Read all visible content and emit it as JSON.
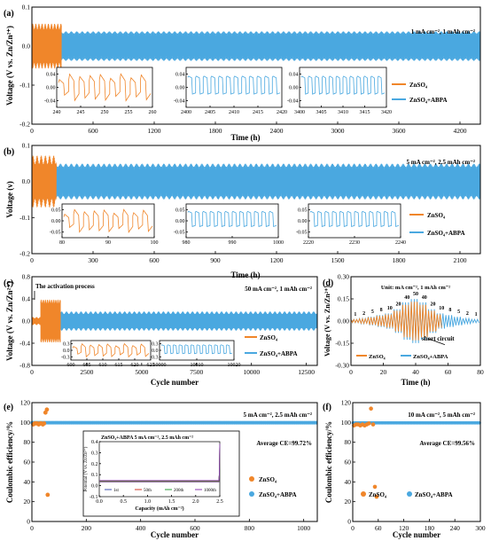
{
  "colors": {
    "znso4": "#f0862a",
    "abpa": "#4aa8e0"
  },
  "chart_data": [
    {
      "panel": "(a)",
      "type": "line",
      "condition": "1 mA cm⁻²,  1 mAh cm⁻²",
      "xlabel": "Time (h)",
      "ylabel": "Voltage (V vs. Zn/Zn²⁺)",
      "xlim": [
        0,
        4400
      ],
      "ylim": [
        -0.2,
        0.1
      ],
      "xticks": [
        "0",
        "600",
        "1200",
        "1800",
        "2400",
        "3000",
        "3600",
        "4200"
      ],
      "yticks": [
        "-0.2",
        "-0.1",
        "0.0",
        "0.1"
      ],
      "series": [
        {
          "name": "ZnSO₄",
          "color": "#f0862a",
          "x_end": 290,
          "amplitude": 0.05
        },
        {
          "name": "ZnSO₄+ABPA",
          "color": "#4aa8e0",
          "x_end": 4400,
          "amplitude": 0.035
        }
      ],
      "insets": [
        {
          "xticks": [
            "240",
            "245",
            "250",
            "255",
            "260"
          ],
          "yticks": [
            "0.04",
            "0.00",
            "-0.04"
          ],
          "series": "ZnSO₄"
        },
        {
          "xticks": [
            "2400",
            "2405",
            "2410",
            "2415",
            "2420"
          ],
          "yticks": [
            "0.04",
            "0.00",
            "-0.04"
          ],
          "series": "ZnSO₄+ABPA"
        },
        {
          "xticks": [
            "3400",
            "3405",
            "3410",
            "3415",
            "3420"
          ],
          "yticks": [
            "0.04",
            "0.00",
            "-0.04"
          ],
          "series": "ZnSO₄+ABPA"
        }
      ]
    },
    {
      "panel": "(b)",
      "type": "line",
      "condition": "5 mA cm⁻², 2.5 mAh cm⁻²",
      "xlabel": "Time (h)",
      "ylabel": "Voltage (v)",
      "xlim": [
        0,
        2200
      ],
      "ylim": [
        -0.2,
        0.1
      ],
      "xticks": [
        "0",
        "300",
        "600",
        "900",
        "1200",
        "1500",
        "1800",
        "2100"
      ],
      "yticks": [
        "-0.2",
        "-0.1",
        "0.0",
        "0.1"
      ],
      "series": [
        {
          "name": "ZnSO₄",
          "color": "#f0862a",
          "x_end": 120,
          "amplitude": 0.06
        },
        {
          "name": "ZnSO₄+ABPA",
          "color": "#4aa8e0",
          "x_end": 2200,
          "amplitude": 0.045
        }
      ],
      "insets": [
        {
          "xticks": [
            "80",
            "90",
            "100"
          ],
          "yticks": [
            "0.05",
            "0.00",
            "-0.05"
          ],
          "series": "ZnSO₄"
        },
        {
          "xticks": [
            "980",
            "990",
            "1000"
          ],
          "yticks": [
            "0.05",
            "0.00",
            "-0.05"
          ],
          "series": "ZnSO₄+ABPA"
        },
        {
          "xticks": [
            "2220",
            "2230",
            "2240"
          ],
          "yticks": [
            "0.05",
            "0.00",
            "-0.05"
          ],
          "series": "ZnSO₄+ABPA"
        }
      ]
    },
    {
      "panel": "(c)",
      "type": "line",
      "condition": "50 mA cm⁻², 1 mAh cm⁻²",
      "annotation": "The activation process",
      "xlabel": "Cycle number",
      "ylabel": "Voltage (V vs. Zn/Zn²⁺)",
      "xlim": [
        0,
        13000
      ],
      "ylim": [
        -0.8,
        0.8
      ],
      "xticks": [
        "0",
        "2500",
        "5000",
        "7500",
        "10000",
        "12500"
      ],
      "yticks": [
        "-0.8",
        "-0.4",
        "0.0",
        "0.4",
        "0.8"
      ],
      "series": [
        {
          "name": "ZnSO₄",
          "color": "#f0862a",
          "x_end": 1300,
          "amplitude": 0.35
        },
        {
          "name": "ZnSO₄+ABPA",
          "color": "#4aa8e0",
          "x_end": 13000,
          "amplitude": 0.15
        }
      ],
      "insets": [
        {
          "xticks": [
            "600",
            "605",
            "610",
            "615",
            "620",
            "625"
          ],
          "yticks": [
            "0.3",
            "0.0",
            "-0.3"
          ],
          "series": "ZnSO₄"
        },
        {
          "xticks": [
            "10000",
            "10010",
            "10020"
          ],
          "yticks": [
            "0.3",
            "0.0",
            "-0.3"
          ],
          "series": "ZnSO₄+ABPA"
        }
      ]
    },
    {
      "panel": "(d)",
      "type": "line",
      "condition": "Unit: mA cm⁻², 1 mAh cm⁻²",
      "annotation": "short circuit",
      "xlabel": "Time (h)",
      "ylabel": "Voltage (V vs. Zn/Zn²⁺)",
      "xlim": [
        0,
        80
      ],
      "ylim": [
        -0.3,
        0.3
      ],
      "xticks": [
        "0",
        "20",
        "40",
        "60",
        "80"
      ],
      "yticks": [
        "-0.30",
        "-0.15",
        "0.00",
        "0.15",
        "0.30"
      ],
      "rate_labels": [
        "1",
        "2",
        "5",
        "8",
        "10",
        "20",
        "40",
        "50",
        "40",
        "20",
        "10",
        "8",
        "5",
        "2",
        "1"
      ],
      "series": [
        {
          "name": "ZnSO₄",
          "color": "#f0862a"
        },
        {
          "name": "ZnSO₄+ABPA",
          "color": "#4aa8e0"
        }
      ]
    },
    {
      "panel": "(e)",
      "type": "scatter",
      "condition": "5 mA cm⁻², 2.5 mAh cm⁻²",
      "average": "Average CE=99.72%",
      "xlabel": "Cycle number",
      "ylabel": "Coulombic efficiency/%",
      "xlim": [
        0,
        1050
      ],
      "ylim": [
        0,
        120
      ],
      "xticks": [
        "0",
        "200",
        "400",
        "600",
        "800",
        "1000"
      ],
      "yticks": [
        "0",
        "20",
        "40",
        "60",
        "80",
        "100",
        "120"
      ],
      "series": [
        {
          "name": "ZnSO₄",
          "color": "#f0862a",
          "points": [
            [
              5,
              98
            ],
            [
              10,
              99
            ],
            [
              15,
              99
            ],
            [
              20,
              99
            ],
            [
              25,
              98
            ],
            [
              30,
              99
            ],
            [
              35,
              99
            ],
            [
              40,
              98
            ],
            [
              45,
              99
            ],
            [
              50,
              110
            ],
            [
              55,
              113
            ],
            [
              58,
              27
            ]
          ]
        },
        {
          "name": "ZnSO₄+ABPA",
          "color": "#4aa8e0",
          "x_end": 1050,
          "value": 99.72
        }
      ],
      "inset": {
        "title": "ZnSO₄+ABPA     5 mA cm⁻², 2.5 mAh cm⁻²",
        "xlabel": "Capacity (mAh cm⁻²)",
        "ylabel": "Potential (V vs. Zn/Zn²⁺)",
        "xlim": [
          0,
          2.5
        ],
        "ylim": [
          -0.1,
          0.4
        ],
        "xticks": [
          "0.0",
          "0.5",
          "1.0",
          "1.5",
          "2.0",
          "2.5"
        ],
        "yticks": [
          "-0.1",
          "0.0",
          "0.1",
          "0.2",
          "0.3",
          "0.4"
        ],
        "series": [
          {
            "name": "1st",
            "color": "#3c4fb0"
          },
          {
            "name": "50th",
            "color": "#d23a2a"
          },
          {
            "name": "200th",
            "color": "#2a9a3a"
          },
          {
            "name": "1000th",
            "color": "#8a3ab0"
          }
        ]
      }
    },
    {
      "panel": "(f)",
      "type": "scatter",
      "condition": "10 mA cm⁻², 5 mAh cm⁻²",
      "average": "Average CE=99.56%",
      "xlabel": "Cycle number",
      "ylabel": "Coulombic efficiency/%",
      "xlim": [
        0,
        300
      ],
      "ylim": [
        0,
        120
      ],
      "xticks": [
        "0",
        "60",
        "120",
        "180",
        "240",
        "300"
      ],
      "yticks": [
        "0",
        "20",
        "40",
        "60",
        "80",
        "100",
        "120"
      ],
      "series": [
        {
          "name": "ZnSO₄",
          "color": "#f0862a",
          "points": [
            [
              3,
              97
            ],
            [
              8,
              98
            ],
            [
              13,
              98
            ],
            [
              18,
              97
            ],
            [
              23,
              98
            ],
            [
              28,
              97
            ],
            [
              33,
              98
            ],
            [
              38,
              99
            ],
            [
              43,
              114
            ],
            [
              48,
              98
            ],
            [
              52,
              35
            ],
            [
              56,
              25
            ]
          ]
        },
        {
          "name": "ZnSO₄+ABPA",
          "color": "#4aa8e0",
          "x_end": 300,
          "value": 99.56
        }
      ]
    }
  ]
}
